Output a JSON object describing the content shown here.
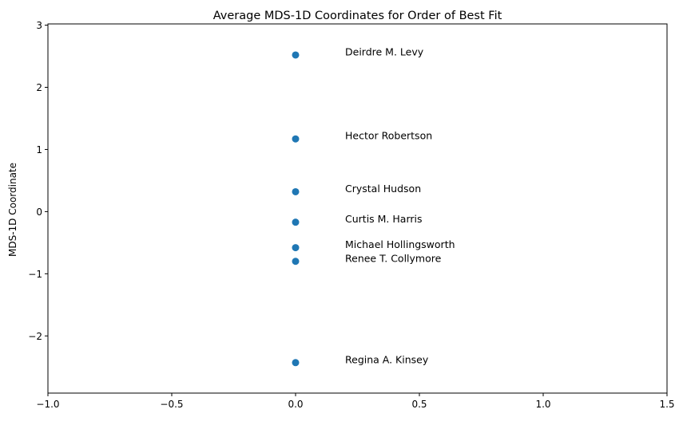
{
  "chart_data": {
    "type": "scatter",
    "title": "Average MDS-1D Coordinates for Order of Best Fit",
    "xlabel": "",
    "ylabel": "MDS-1D Coordinate",
    "xlim": [
      -1.0,
      1.5
    ],
    "ylim": [
      -2.92,
      3.02
    ],
    "x_ticks": [
      -1.0,
      -0.5,
      0.0,
      0.5,
      1.0,
      1.5
    ],
    "x_tick_labels": [
      "−1.0",
      "−0.5",
      "0.0",
      "0.5",
      "1.0",
      "1.5"
    ],
    "y_ticks": [
      -2,
      -1,
      0,
      1,
      2,
      3
    ],
    "y_tick_labels": [
      "−2",
      "−1",
      "0",
      "1",
      "2",
      "3"
    ],
    "grid": false,
    "marker_color": "#1f77b4",
    "annotation_x_offset": 0.2,
    "points": [
      {
        "label": "Deirdre M. Levy",
        "x": 0.0,
        "y": 2.52
      },
      {
        "label": "Hector Robertson",
        "x": 0.0,
        "y": 1.17
      },
      {
        "label": "Crystal Hudson",
        "x": 0.0,
        "y": 0.32
      },
      {
        "label": "Curtis M. Harris",
        "x": 0.0,
        "y": -0.17
      },
      {
        "label": "Michael Hollingsworth",
        "x": 0.0,
        "y": -0.58
      },
      {
        "label": "Renee T. Collymore",
        "x": 0.0,
        "y": -0.8
      },
      {
        "label": "Regina A. Kinsey",
        "x": 0.0,
        "y": -2.43
      }
    ]
  }
}
